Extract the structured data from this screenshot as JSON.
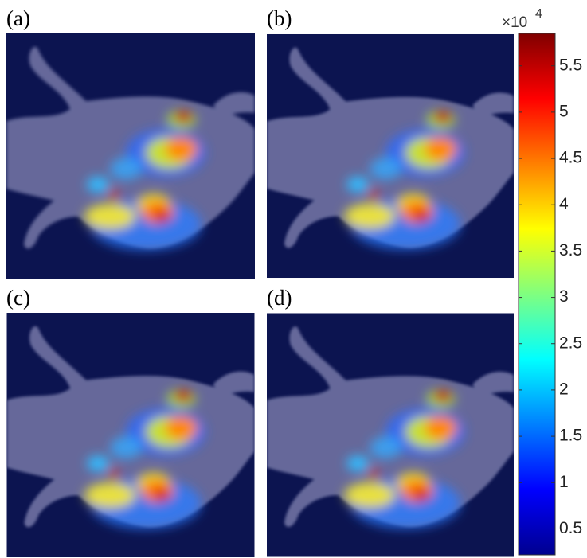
{
  "panels": [
    {
      "label": "(a)"
    },
    {
      "label": "(b)"
    },
    {
      "label": "(c)"
    },
    {
      "label": "(d)"
    }
  ],
  "colorbar": {
    "multiplier": "×10",
    "exponent": "4",
    "lim": [
      0.22,
      5.85
    ],
    "ticks": [
      0.5,
      1,
      1.5,
      2,
      2.5,
      3,
      3.5,
      4,
      4.5,
      5,
      5.5
    ],
    "colormap": "jet"
  }
}
